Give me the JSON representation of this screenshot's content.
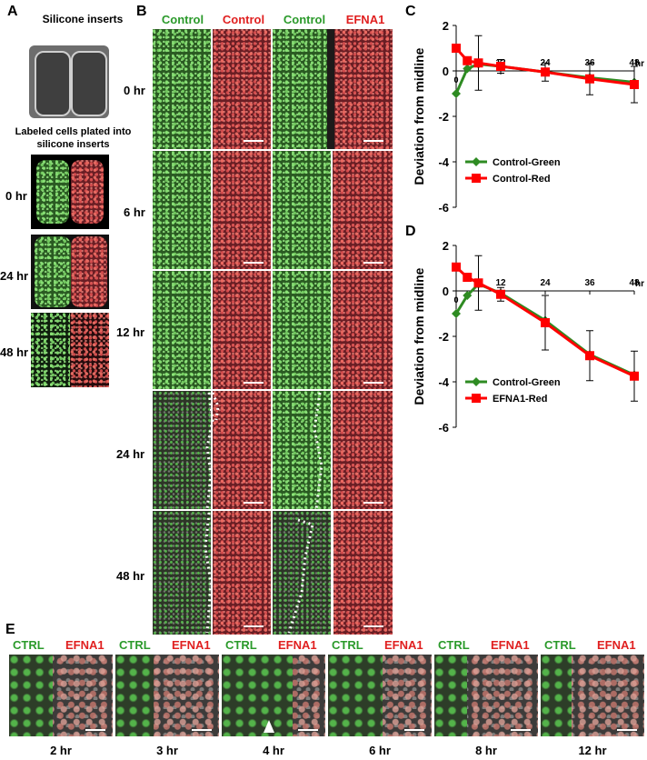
{
  "panel_a": {
    "label": "A",
    "inserts_title": "Silicone inserts",
    "plated_caption": "Labeled cells plated into silicone inserts",
    "times": [
      "0 hr",
      "24 hr",
      "48 hr"
    ]
  },
  "panel_b": {
    "label": "B",
    "headers": [
      "Control",
      "Control",
      "Control",
      "EFNA1"
    ],
    "times": [
      "0 hr",
      "6 hr",
      "12 hr",
      "24 hr",
      "48 hr"
    ]
  },
  "panel_e": {
    "label": "E",
    "left_label": "CTRL",
    "right_label": "EFNA1",
    "times": [
      "2 hr",
      "3 hr",
      "4 hr",
      "6 hr",
      "8 hr",
      "12 hr"
    ]
  },
  "colors": {
    "green_series": "#2e8b22",
    "red_series": "#ff0000"
  },
  "chart_data": [
    {
      "panel": "C",
      "type": "line",
      "ylabel": "Deviation from midline",
      "x_unit": "hr",
      "ylim": [
        -6,
        2
      ],
      "xlim": [
        0,
        48
      ],
      "yticks": [
        2,
        0,
        -2,
        -4,
        -6
      ],
      "xticks": [
        0,
        12,
        24,
        36,
        48
      ],
      "legend_position": "lower-left",
      "series": [
        {
          "name": "Control-Green",
          "color": "#2e8b22",
          "marker": "diamond",
          "x": [
            0,
            3,
            6,
            12,
            24,
            36,
            48
          ],
          "y": [
            -1.0,
            0.1,
            0.3,
            0.2,
            -0.05,
            -0.3,
            -0.5
          ]
        },
        {
          "name": "Control-Red",
          "color": "#ff0000",
          "marker": "square",
          "x": [
            0,
            3,
            6,
            12,
            24,
            36,
            48
          ],
          "y": [
            1.0,
            0.45,
            0.35,
            0.2,
            -0.05,
            -0.35,
            -0.6
          ],
          "err": [
            0,
            0,
            1.2,
            0.3,
            0.4,
            0.7,
            0.8
          ]
        }
      ]
    },
    {
      "panel": "D",
      "type": "line",
      "ylabel": "Deviation from midline",
      "x_unit": "hr",
      "ylim": [
        -6,
        2
      ],
      "xlim": [
        0,
        48
      ],
      "yticks": [
        2,
        0,
        -2,
        -4,
        -6
      ],
      "xticks": [
        0,
        12,
        24,
        36,
        48
      ],
      "legend_position": "lower-left",
      "series": [
        {
          "name": "Control-Green",
          "color": "#2e8b22",
          "marker": "diamond",
          "x": [
            0,
            3,
            6,
            12,
            24,
            36,
            48
          ],
          "y": [
            -1.0,
            -0.2,
            0.3,
            -0.1,
            -1.3,
            -2.8,
            -3.7
          ]
        },
        {
          "name": "EFNA1-Red",
          "color": "#ff0000",
          "marker": "square",
          "x": [
            0,
            3,
            6,
            12,
            24,
            36,
            48
          ],
          "y": [
            1.05,
            0.6,
            0.35,
            -0.15,
            -1.4,
            -2.85,
            -3.75
          ],
          "err": [
            0,
            0,
            1.2,
            0.3,
            1.2,
            1.1,
            1.1
          ]
        }
      ]
    }
  ]
}
